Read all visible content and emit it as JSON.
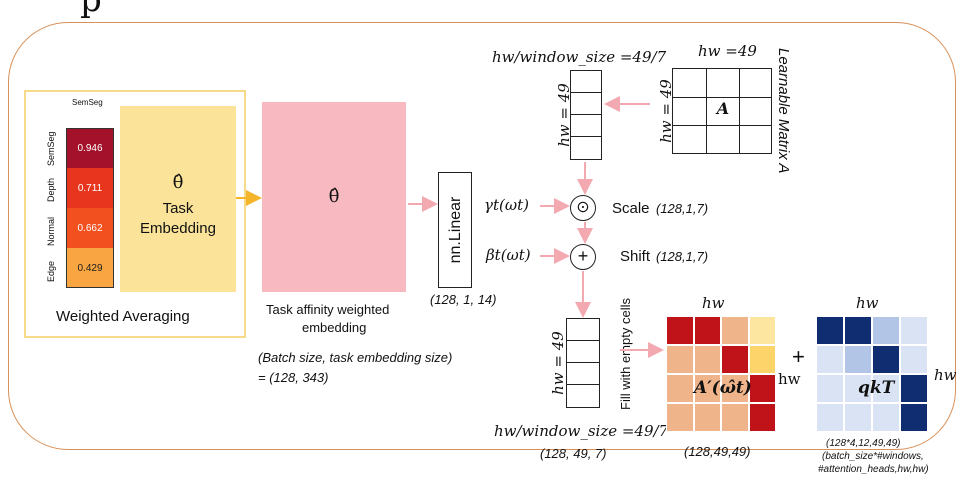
{
  "heatmap": {
    "column_label": "SemSeg",
    "rows": [
      {
        "label": "SemSeg",
        "value": "0.946",
        "color": "#a3122a"
      },
      {
        "label": "Depth",
        "value": "0.711",
        "color": "#e8361e"
      },
      {
        "label": "Normal",
        "value": "0.662",
        "color": "#f2501f"
      },
      {
        "label": "Edge",
        "value": "0.429",
        "color": "#f9a541"
      }
    ],
    "caption": "Weighted Averaging"
  },
  "task_embedding": {
    "symbol": "θ̂",
    "line1": "Task",
    "line2": "Embedding",
    "color": "#fbe49a"
  },
  "affinity": {
    "symbol": "θ̂",
    "caption_line1": "Task affinity weighted",
    "caption_line2": "embedding",
    "shape_line1": "(Batch size, task embedding size)",
    "shape_line2": "= (128, 343)",
    "color": "#f8b9c0"
  },
  "linear": {
    "label": "nn.Linear",
    "shape": "(128, 1, 14)"
  },
  "top_vector": {
    "width_label": "hw/window_size =49/7",
    "height_label": "hw = 49"
  },
  "matrix_a": {
    "width_label": "hw =49",
    "height_label": "hw = 49",
    "center": "A",
    "side_label": "Learnable Matrix A"
  },
  "scale": {
    "func": "γt(ωt)",
    "op": "⊙",
    "label": "Scale",
    "shape": "(128,1,7)"
  },
  "shift": {
    "func": "βt(ωt)",
    "op": "+",
    "label": "Shift",
    "shape": "(128,1,7)"
  },
  "bottom_vector": {
    "height_label": "hw = 49",
    "width_label": "hw/window_size =49/7",
    "shape": "(128, 49, 7)"
  },
  "fill_label": "Fill with empty cells",
  "a_prime": {
    "top_label": "hw",
    "side_label": "hw",
    "center": "A′(ω̂t)",
    "shape": "(128,49,49)",
    "cells": [
      [
        "#c01219",
        "#c01219",
        "#f0b48a",
        "#fde7a0"
      ],
      [
        "#f0b48a",
        "#f0b48a",
        "#c01219",
        "#fcd46a"
      ],
      [
        "#f0b48a",
        "#f0b48a",
        "#f0b48a",
        "#c01219"
      ],
      [
        "#f0b48a",
        "#f0b48a",
        "#f0b48a",
        "#c01219"
      ]
    ]
  },
  "plus": "+",
  "qk": {
    "top_label": "hw",
    "side_label": "hw",
    "center": "qkT",
    "shape_line1": "(128*4,12,49,49)",
    "shape_line2": "(batch_size*#windows,",
    "shape_line3": "#attention_heads,hw,hw)",
    "cells": [
      [
        "#102d72",
        "#102d72",
        "#b3c5e6",
        "#d9e3f3"
      ],
      [
        "#d9e3f3",
        "#b3c5e6",
        "#102d72",
        "#d9e3f3"
      ],
      [
        "#d9e3f3",
        "#d9e3f3",
        "#d9e3f3",
        "#102d72"
      ],
      [
        "#d9e3f3",
        "#d9e3f3",
        "#d9e3f3",
        "#102d72"
      ]
    ]
  },
  "colors": {
    "frame": "#d9915a",
    "arrow_pink": "#f2a9b0",
    "arrow_orange": "#f5b52a"
  }
}
